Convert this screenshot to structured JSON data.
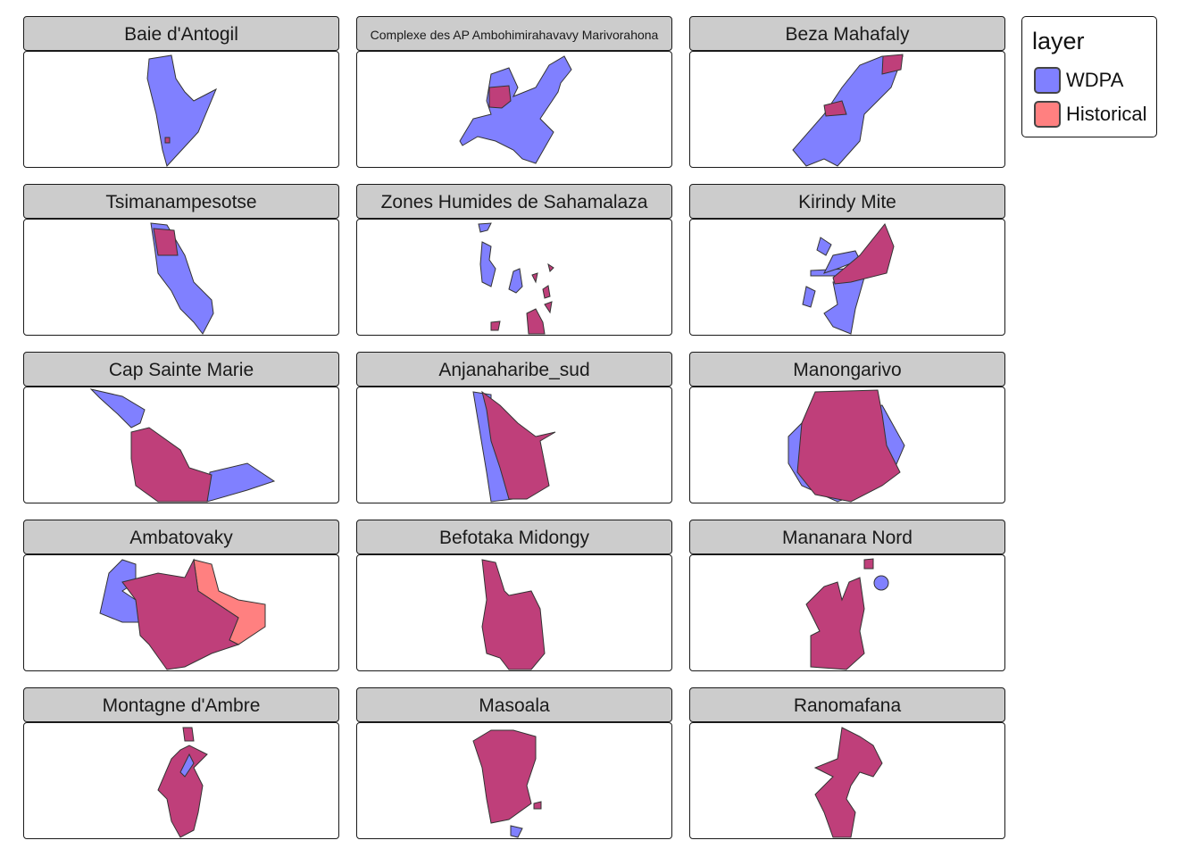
{
  "chart_data": {
    "type": "map",
    "facets": [
      "Baie d'Antogil",
      "Complexe des  AP Ambohimirahavavy Marivorahona",
      "Beza Mahafaly",
      "Tsimanampesotse",
      "Zones Humides de Sahamalaza",
      "Kirindy Mite",
      "Cap Sainte Marie",
      "Anjanaharibe_sud",
      "Manongarivo",
      "Ambatovaky",
      "Befotaka Midongy",
      "Mananara Nord",
      "Montagne d'Ambre",
      "Masoala",
      "Ranomafana"
    ],
    "legend": {
      "title": "layer",
      "position": "right",
      "entries": [
        {
          "label": "WDPA",
          "color": "#8080FF"
        },
        {
          "label": "Historical",
          "color": "#FF8080"
        }
      ]
    },
    "overlap_color": "#BF3F7A",
    "grid": false
  }
}
